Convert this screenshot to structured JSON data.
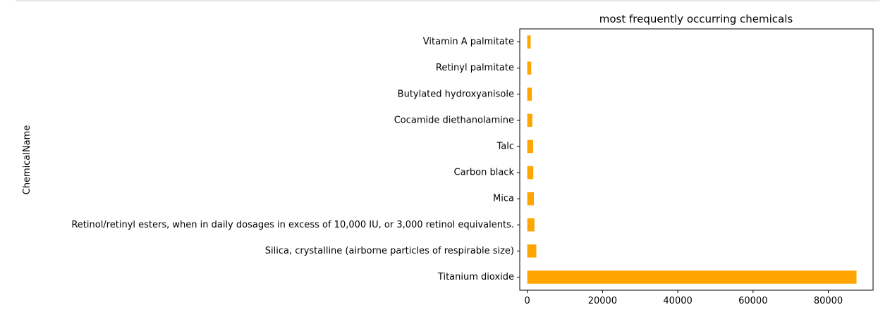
{
  "chart_data": {
    "type": "bar",
    "orientation": "horizontal",
    "title": "most frequently occurring chemicals",
    "xlabel": "",
    "ylabel": "ChemicalName",
    "categories": [
      "Titanium dioxide",
      "Silica, crystalline (airborne particles of respirable size)",
      "Retinol/retinyl esters, when in daily dosages in excess of 10,000 IU, or 3,000 retinol equivalents.",
      "Mica",
      "Carbon black",
      "Talc",
      "Cocamide diethanolamine",
      "Butylated hydroxyanisole",
      "Retinyl palmitate",
      "Vitamin A palmitate"
    ],
    "values": [
      87500,
      2400,
      1900,
      1750,
      1600,
      1550,
      1350,
      1200,
      1050,
      900
    ],
    "xlim": [
      -2000,
      91900
    ],
    "xticks": [
      0,
      20000,
      40000,
      60000,
      80000
    ],
    "xtick_labels": [
      "0",
      "20000",
      "40000",
      "60000",
      "80000"
    ],
    "bar_color": "#ffa500",
    "grid": false,
    "legend": "none"
  }
}
